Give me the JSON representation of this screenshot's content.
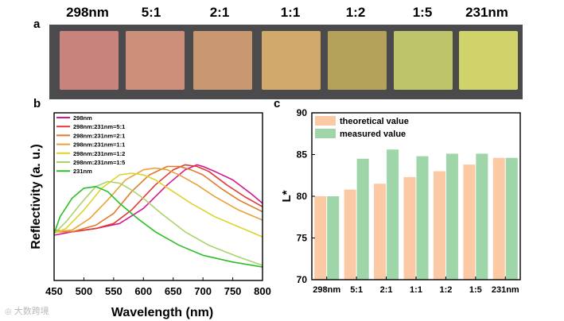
{
  "panel_labels": {
    "a": "a",
    "b": "b",
    "c": "c"
  },
  "panel_a": {
    "sample_labels": [
      "298nm",
      "5:1",
      "2:1",
      "1:1",
      "1:2",
      "1:5",
      "231nm"
    ],
    "swatch_colors": [
      "#c8837d",
      "#cb8f7a",
      "#c99870",
      "#d1a96a",
      "#b5a25a",
      "#bdc46a",
      "#d0d36a"
    ]
  },
  "watermark": {
    "text": "大数跨境"
  },
  "chart_data": [
    {
      "type": "line",
      "title": "",
      "xlabel": "Wavelength (nm)",
      "ylabel": "Reflectivity (a. u.)",
      "xlim": [
        450,
        800
      ],
      "x_ticks": [
        450,
        500,
        550,
        600,
        650,
        700,
        750,
        800
      ],
      "x_tick_labels": [
        "450",
        "500",
        "550",
        "600",
        "650",
        "700",
        "750",
        "800"
      ],
      "legend_placement": "top-left",
      "series": [
        {
          "name": "298nm",
          "color": "#d6178c",
          "x": [
            450,
            480,
            520,
            560,
            600,
            640,
            670,
            690,
            700,
            720,
            750,
            780,
            800
          ],
          "y": [
            0.27,
            0.29,
            0.31,
            0.34,
            0.43,
            0.57,
            0.66,
            0.69,
            0.68,
            0.65,
            0.6,
            0.52,
            0.46
          ]
        },
        {
          "name": "298nm:231nm=5:1",
          "color": "#e03a33",
          "x": [
            450,
            480,
            520,
            550,
            580,
            620,
            650,
            670,
            690,
            710,
            740,
            770,
            800
          ],
          "y": [
            0.3,
            0.29,
            0.31,
            0.34,
            0.42,
            0.57,
            0.66,
            0.69,
            0.68,
            0.65,
            0.57,
            0.5,
            0.44
          ]
        },
        {
          "name": "298nm:231nm=2:1",
          "color": "#e07a2c",
          "x": [
            450,
            480,
            520,
            550,
            580,
            610,
            640,
            660,
            680,
            700,
            730,
            760,
            800
          ],
          "y": [
            0.29,
            0.29,
            0.33,
            0.4,
            0.53,
            0.63,
            0.68,
            0.68,
            0.66,
            0.63,
            0.55,
            0.48,
            0.41
          ]
        },
        {
          "name": "298nm:231nm=1:1",
          "color": "#e8a23a",
          "x": [
            450,
            480,
            510,
            540,
            570,
            600,
            620,
            640,
            660,
            690,
            720,
            760,
            800
          ],
          "y": [
            0.29,
            0.3,
            0.37,
            0.48,
            0.6,
            0.66,
            0.67,
            0.66,
            0.63,
            0.57,
            0.5,
            0.42,
            0.36
          ]
        },
        {
          "name": "298nm:231nm=1:2",
          "color": "#dcd42a",
          "x": [
            450,
            470,
            500,
            530,
            560,
            580,
            600,
            620,
            650,
            680,
            720,
            760,
            800
          ],
          "y": [
            0.28,
            0.31,
            0.42,
            0.55,
            0.63,
            0.64,
            0.63,
            0.6,
            0.53,
            0.46,
            0.38,
            0.32,
            0.26
          ]
        },
        {
          "name": "298nm:231nm=1:5",
          "color": "#a9d46a",
          "x": [
            450,
            470,
            500,
            520,
            540,
            560,
            580,
            600,
            630,
            670,
            710,
            760,
            800
          ],
          "y": [
            0.28,
            0.35,
            0.48,
            0.56,
            0.59,
            0.58,
            0.54,
            0.49,
            0.4,
            0.29,
            0.21,
            0.14,
            0.09
          ]
        },
        {
          "name": "231nm",
          "color": "#2bbf25",
          "x": [
            450,
            460,
            480,
            500,
            520,
            540,
            560,
            590,
            620,
            660,
            700,
            750,
            800
          ],
          "y": [
            0.28,
            0.38,
            0.49,
            0.55,
            0.56,
            0.53,
            0.46,
            0.37,
            0.29,
            0.21,
            0.15,
            0.11,
            0.08
          ]
        }
      ]
    },
    {
      "type": "bar",
      "title": "",
      "xlabel": "",
      "ylabel": "L*",
      "ylim": [
        70,
        90
      ],
      "y_ticks": [
        70,
        75,
        80,
        85,
        90
      ],
      "y_tick_labels": [
        "70",
        "75",
        "80",
        "85",
        "90"
      ],
      "categories": [
        "298nm",
        "5:1",
        "2:1",
        "1:1",
        "1:2",
        "1:5",
        "231nm"
      ],
      "legend_placement": "top-left",
      "series": [
        {
          "name": "theoretical value",
          "color": "#fbc9a3",
          "values": [
            80.0,
            80.8,
            81.5,
            82.3,
            83.0,
            83.8,
            84.6
          ]
        },
        {
          "name": "measured value",
          "color": "#9fd6a9",
          "values": [
            80.0,
            84.5,
            85.6,
            84.8,
            85.1,
            85.1,
            84.6
          ]
        }
      ]
    }
  ]
}
